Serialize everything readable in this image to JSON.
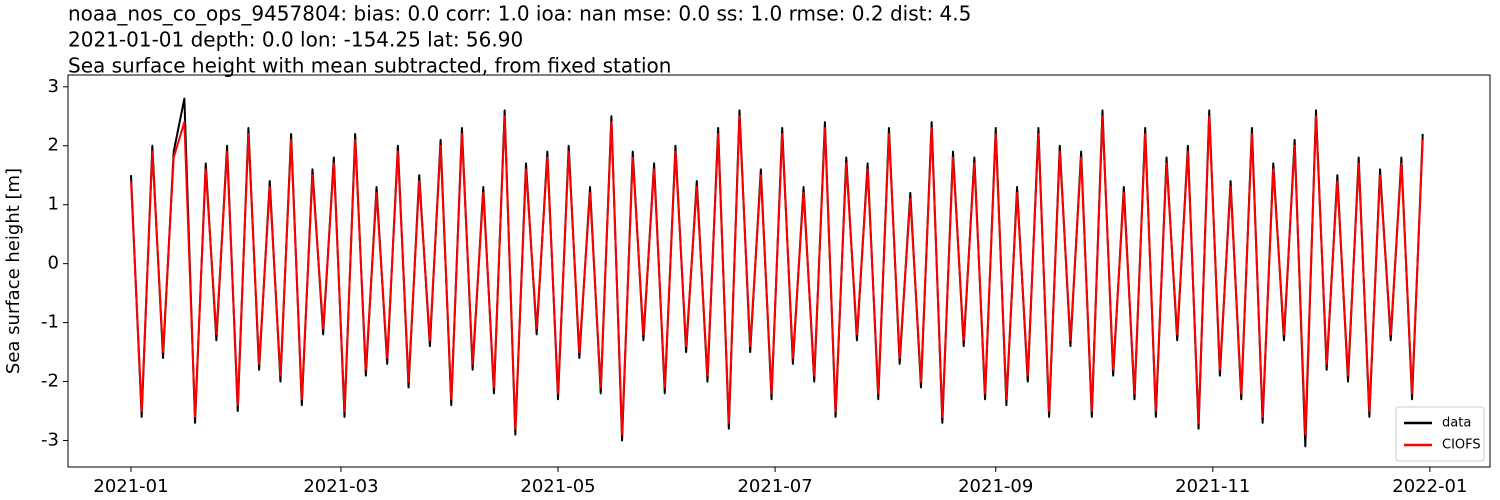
{
  "chart_data": {
    "type": "line",
    "title": "noaa_nos_co_ops_9457804: bias: 0.0  corr: 1.0  ioa: nan  mse: 0.0  ss: 1.0  rmse: 0.2  dist: 4.5",
    "subtitle": "2021-01-01 depth: 0.0 lon: -154.25 lat: 56.90",
    "subtitle2": "Sea surface height with mean subtracted, from fixed station",
    "ylabel": "Sea surface height [m]",
    "x": [
      0,
      3,
      6,
      9,
      12,
      15,
      18,
      21,
      24,
      27,
      30,
      33,
      36,
      39,
      42,
      45,
      48,
      51,
      54,
      57,
      60,
      63,
      66,
      69,
      72,
      75,
      78,
      81,
      84,
      87,
      90,
      93,
      96,
      99,
      102,
      105,
      108,
      111,
      114,
      117,
      120,
      123,
      126,
      129,
      132,
      135,
      138,
      141,
      144,
      147,
      150,
      153,
      156,
      159,
      162,
      165,
      168,
      171,
      174,
      177,
      180,
      183,
      186,
      189,
      192,
      195,
      198,
      201,
      204,
      207,
      210,
      213,
      216,
      219,
      222,
      225,
      228,
      231,
      234,
      237,
      240,
      243,
      246,
      249,
      252,
      255,
      258,
      261,
      264,
      267,
      270,
      273,
      276,
      279,
      282,
      285,
      288,
      291,
      294,
      297,
      300,
      303,
      306,
      309,
      312,
      315,
      318,
      321,
      324,
      327,
      330,
      333,
      336,
      339,
      342,
      345,
      348,
      351,
      354,
      357,
      360,
      363
    ],
    "xlim": [
      -17.7,
      381.9
    ],
    "xticks": [
      {
        "value": 0,
        "label": "2021-01"
      },
      {
        "value": 59,
        "label": "2021-03"
      },
      {
        "value": 120,
        "label": "2021-05"
      },
      {
        "value": 181,
        "label": "2021-07"
      },
      {
        "value": 243,
        "label": "2021-09"
      },
      {
        "value": 304,
        "label": "2021-11"
      },
      {
        "value": 365,
        "label": "2022-01"
      }
    ],
    "ylim": [
      -3.45,
      3.2
    ],
    "yticks": [
      -3,
      -2,
      -1,
      0,
      1,
      2,
      3
    ],
    "legend": "lower right",
    "series": [
      {
        "name": "data",
        "color": "#000000",
        "values": [
          1.5,
          -2.6,
          2.0,
          -1.6,
          1.9,
          2.8,
          -2.7,
          1.7,
          -1.3,
          2.0,
          -2.5,
          2.3,
          -1.8,
          1.4,
          -2.0,
          2.2,
          -2.4,
          1.6,
          -1.2,
          1.8,
          -2.6,
          2.2,
          -1.9,
          1.3,
          -1.7,
          2.0,
          -2.1,
          1.5,
          -1.4,
          2.1,
          -2.4,
          2.3,
          -1.8,
          1.3,
          -2.2,
          2.6,
          -2.9,
          1.7,
          -1.2,
          1.9,
          -2.3,
          2.0,
          -1.6,
          1.3,
          -2.2,
          2.5,
          -3.0,
          1.9,
          -1.3,
          1.7,
          -2.2,
          2.0,
          -1.5,
          1.4,
          -2.0,
          2.3,
          -2.8,
          2.6,
          -1.5,
          1.6,
          -2.3,
          2.3,
          -1.7,
          1.3,
          -2.0,
          2.4,
          -2.6,
          1.8,
          -1.3,
          1.7,
          -2.3,
          2.3,
          -1.7,
          1.2,
          -2.1,
          2.4,
          -2.7,
          1.9,
          -1.4,
          1.8,
          -2.3,
          2.3,
          -2.4,
          1.3,
          -2.0,
          2.3,
          -2.6,
          2.0,
          -1.4,
          1.9,
          -2.6,
          2.6,
          -1.9,
          1.3,
          -2.3,
          2.3,
          -2.6,
          1.8,
          -1.3,
          2.0,
          -2.8,
          2.6,
          -1.9,
          1.4,
          -2.3,
          2.3,
          -2.7,
          1.7,
          -1.3,
          2.1,
          -3.1,
          2.6,
          -1.8,
          1.5,
          -2.0,
          1.8,
          -2.6,
          1.6,
          -1.3,
          1.8,
          -2.3,
          2.2
        ]
      },
      {
        "name": "CIOFS",
        "color": "#ff0000",
        "values": [
          1.4,
          -2.5,
          1.9,
          -1.5,
          1.8,
          2.4,
          -2.6,
          1.6,
          -1.2,
          1.9,
          -2.4,
          2.2,
          -1.7,
          1.3,
          -1.9,
          2.1,
          -2.3,
          1.5,
          -1.1,
          1.7,
          -2.5,
          2.1,
          -1.8,
          1.2,
          -1.6,
          1.9,
          -2.0,
          1.4,
          -1.3,
          2.0,
          -2.3,
          2.2,
          -1.7,
          1.2,
          -2.1,
          2.5,
          -2.8,
          1.6,
          -1.1,
          1.8,
          -2.2,
          1.9,
          -1.5,
          1.2,
          -2.1,
          2.4,
          -2.9,
          1.8,
          -1.2,
          1.6,
          -2.1,
          1.9,
          -1.4,
          1.3,
          -1.9,
          2.2,
          -2.7,
          2.5,
          -1.4,
          1.5,
          -2.2,
          2.2,
          -1.6,
          1.2,
          -1.9,
          2.3,
          -2.5,
          1.7,
          -1.2,
          1.6,
          -2.2,
          2.2,
          -1.6,
          1.1,
          -2.0,
          2.3,
          -2.6,
          1.8,
          -1.3,
          1.7,
          -2.2,
          2.2,
          -2.3,
          1.2,
          -1.9,
          2.2,
          -2.5,
          1.9,
          -1.3,
          1.8,
          -2.5,
          2.5,
          -1.8,
          1.2,
          -2.2,
          2.2,
          -2.5,
          1.7,
          -1.2,
          1.9,
          -2.7,
          2.5,
          -1.8,
          1.3,
          -2.2,
          2.2,
          -2.6,
          1.6,
          -1.2,
          2.0,
          -2.9,
          2.5,
          -1.7,
          1.4,
          -1.9,
          1.7,
          -2.5,
          1.5,
          -1.2,
          1.7,
          -2.2,
          2.1
        ]
      }
    ]
  }
}
